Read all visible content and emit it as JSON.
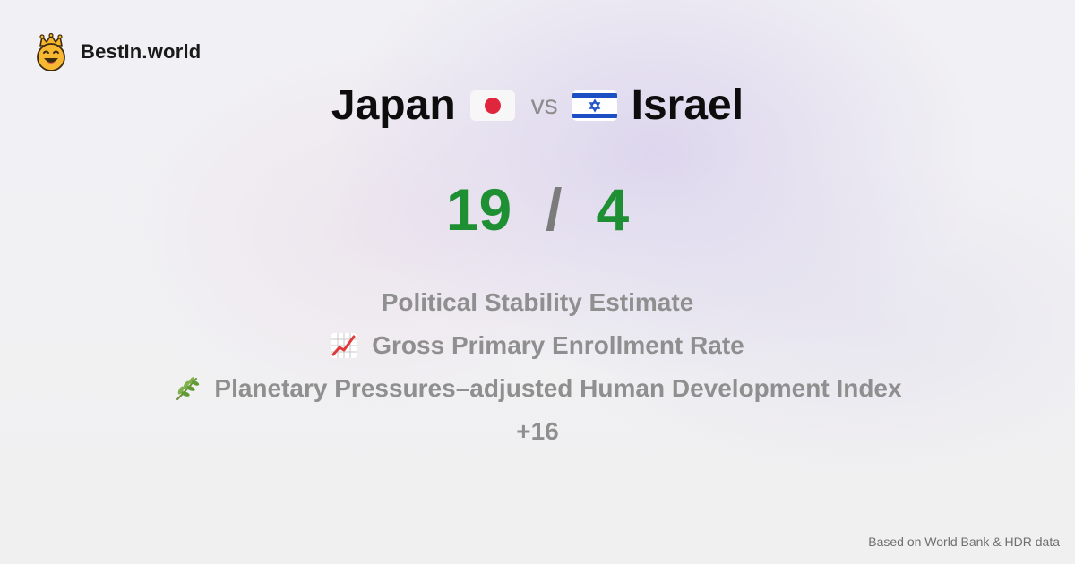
{
  "site": {
    "name": "BestIn.world",
    "logo_icon": "crowned-smiley-icon"
  },
  "comparison": {
    "country_a": {
      "name": "Japan",
      "flag": "japan-flag-icon"
    },
    "vs_label": "vs",
    "country_b": {
      "name": "Israel",
      "flag": "israel-flag-icon"
    }
  },
  "score": {
    "a": "19",
    "separator": "/",
    "b": "4",
    "color": "#1e8f33"
  },
  "metrics": [
    {
      "label": "Political Stability Estimate",
      "icon": ""
    },
    {
      "label": "Gross Primary Enrollment Rate",
      "icon": "chart-increasing-icon"
    },
    {
      "label": "Planetary Pressures–adjusted Human Development Index",
      "icon": "herb-icon"
    }
  ],
  "more_label": "+16",
  "footer": {
    "source": "Based on World Bank & HDR data"
  }
}
